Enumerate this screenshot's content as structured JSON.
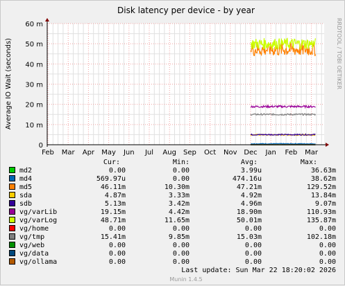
{
  "chart_data": {
    "type": "line",
    "title": "Disk latency per device - by year",
    "ylabel": "Average IO Wait (seconds)",
    "xlabel": "",
    "ylim": [
      0,
      0.06
    ],
    "grid": true,
    "y_ticks": [
      {
        "value": 0,
        "label": "0"
      },
      {
        "value": 0.01,
        "label": "10 m"
      },
      {
        "value": 0.02,
        "label": "20 m"
      },
      {
        "value": 0.03,
        "label": "30 m"
      },
      {
        "value": 0.04,
        "label": "40 m"
      },
      {
        "value": 0.05,
        "label": "50 m"
      },
      {
        "value": 0.06,
        "label": "60 m"
      }
    ],
    "x_ticks": [
      "Feb",
      "Mar",
      "Apr",
      "May",
      "Jun",
      "Jul",
      "Aug",
      "Sep",
      "Oct",
      "Nov",
      "Dec",
      "Jan",
      "Feb",
      "Mar"
    ],
    "data_start_month_index": 10,
    "data_end_month_index": 13.2,
    "colors": {
      "grid_major": "#f0a0a0",
      "grid_minor": "#e0e0e0",
      "plot_bg": "#ffffff",
      "axis": "#000000",
      "arrow": "#800000",
      "text": "#000000",
      "side_text": "#999999"
    },
    "series": [
      {
        "name": "md2",
        "color": "#00cc00",
        "cur": "0.00",
        "min": "0.00",
        "avg": "3.99u",
        "max": "36.63m",
        "level": 4e-06,
        "noise": 0
      },
      {
        "name": "md4",
        "color": "#0066b3",
        "cur": "569.97u",
        "min": "0.00",
        "avg": "474.16u",
        "max": "38.62m",
        "level": 0.00047,
        "noise": 0.0002
      },
      {
        "name": "md5",
        "color": "#ff8000",
        "cur": "46.11m",
        "min": "10.30m",
        "avg": "47.21m",
        "max": "129.52m",
        "level": 0.0472,
        "noise": 0.0035
      },
      {
        "name": "sda",
        "color": "#ffcc00",
        "cur": "4.87m",
        "min": "3.33m",
        "avg": "4.92m",
        "max": "13.84m",
        "level": 0.0049,
        "noise": 0.0003
      },
      {
        "name": "sdb",
        "color": "#330099",
        "cur": "5.13m",
        "min": "3.42m",
        "avg": "4.96m",
        "max": "9.07m",
        "level": 0.005,
        "noise": 0.0003
      },
      {
        "name": "vg/varLib",
        "color": "#990099",
        "cur": "19.15m",
        "min": "4.42m",
        "avg": "18.90m",
        "max": "110.93m",
        "level": 0.0189,
        "noise": 0.0005
      },
      {
        "name": "vg/varLog",
        "color": "#ccff00",
        "cur": "48.71m",
        "min": "11.65m",
        "avg": "50.01m",
        "max": "135.87m",
        "level": 0.05,
        "noise": 0.0028
      },
      {
        "name": "vg/home",
        "color": "#ff0000",
        "cur": "0.00",
        "min": "0.00",
        "avg": "0.00",
        "max": "0.00",
        "level": 0,
        "noise": 0
      },
      {
        "name": "vg/tmp",
        "color": "#808080",
        "cur": "15.41m",
        "min": "9.85m",
        "avg": "15.03m",
        "max": "102.18m",
        "level": 0.015,
        "noise": 0.0004
      },
      {
        "name": "vg/web",
        "color": "#008f00",
        "cur": "0.00",
        "min": "0.00",
        "avg": "0.00",
        "max": "0.00",
        "level": 0,
        "noise": 0
      },
      {
        "name": "vg/data",
        "color": "#00487d",
        "cur": "0.00",
        "min": "0.00",
        "avg": "0.00",
        "max": "0.00",
        "level": 0,
        "noise": 0
      },
      {
        "name": "vg/ollama",
        "color": "#b35a00",
        "cur": "0.00",
        "min": "0.00",
        "avg": "0.00",
        "max": "0.00",
        "level": 0,
        "noise": 0
      }
    ]
  },
  "legend_headers": {
    "cur": "Cur:",
    "min": "Min:",
    "avg": "Avg:",
    "max": "Max:"
  },
  "last_update": "Last update:  Sun Mar 22 18:20:02 2026",
  "side_label": "RRDTOOL / TOBI OETIKER",
  "footer": "Munin 1.4.5"
}
